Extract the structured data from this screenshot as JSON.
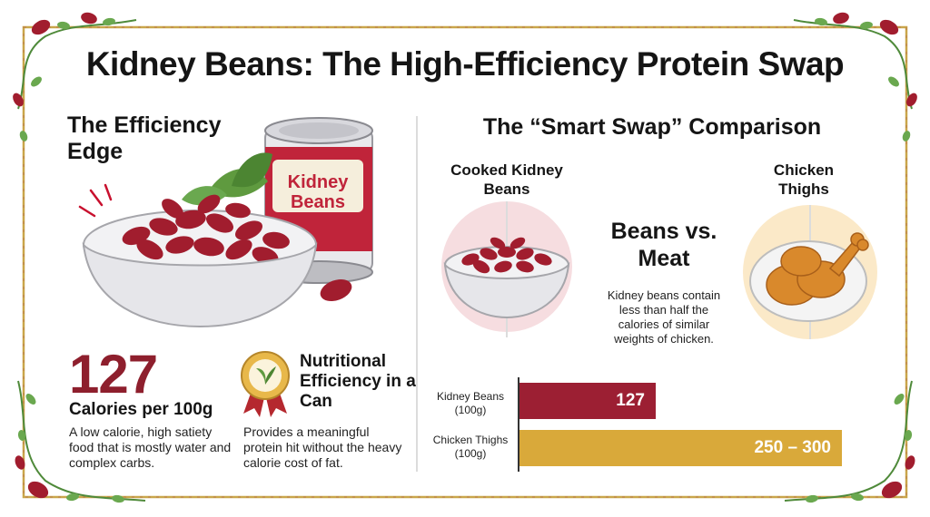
{
  "title": "Kidney Beans: The High-Efficiency Protein Swap",
  "left": {
    "heading": "The Efficiency Edge",
    "can_label": "Kidney Beans",
    "stat_value": "127",
    "stat_unit": "Calories per 100g",
    "stat_desc": "A low calorie, high satiety food that is mostly water and complex carbs.",
    "badge_title": "Nutritional Efficiency in a Can",
    "badge_desc": "Provides a meaningful protein hit without the heavy calorie cost of fat."
  },
  "right": {
    "heading": "The “Smart Swap” Comparison",
    "beans_label": "Cooked Kidney Beans",
    "chicken_label": "Chicken Thighs",
    "versus": "Beans vs. Meat",
    "note": "Kidney beans contain less than half the calories of similar weights of chicken."
  },
  "chart_data": {
    "type": "bar",
    "orientation": "horizontal",
    "categories": [
      "Kidney Beans (100g)",
      "Chicken Thighs (100g)"
    ],
    "values": [
      127,
      300
    ],
    "value_labels": [
      "127",
      "250 – 300"
    ],
    "colors": [
      "#9c1f33",
      "#d9a93a"
    ],
    "xlim": [
      0,
      340
    ]
  },
  "colors": {
    "bean": "#9c1f33",
    "chicken": "#d9a93a",
    "accent_red": "#8e1f2d"
  }
}
